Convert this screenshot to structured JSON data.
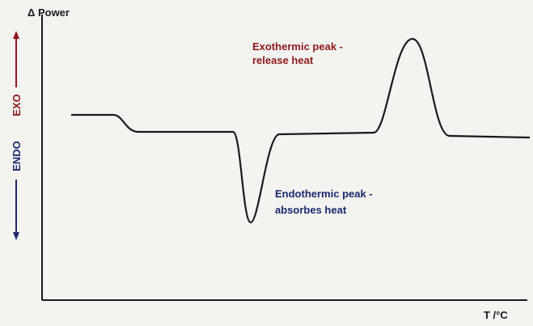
{
  "y_axis": {
    "label": "Δ Power",
    "exo": "EXO",
    "endo": "ENDO"
  },
  "x_axis": {
    "label": "T /°C"
  },
  "annotations": {
    "exothermic": [
      "Exothermic peak -",
      "release heat"
    ],
    "endothermic": [
      "Endothermic peak -",
      "absorbes heat"
    ]
  }
}
